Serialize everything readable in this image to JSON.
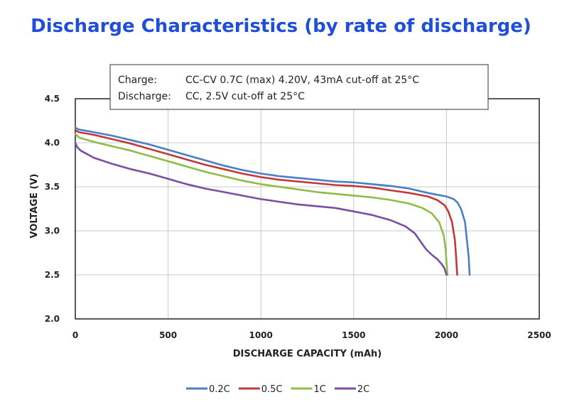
{
  "title": "Discharge Characteristics (by rate of discharge)",
  "chart_data": {
    "type": "line",
    "title": "Discharge Characteristics (by rate of discharge)",
    "xlabel": "DISCHARGE CAPACITY (mAh)",
    "ylabel": "VOLTAGE (V)",
    "xlim": [
      0,
      2500
    ],
    "ylim": [
      2.0,
      4.5
    ],
    "xticks": [
      0,
      500,
      1000,
      1500,
      2000,
      2500
    ],
    "xtick_labels": [
      "0",
      "500",
      "1000",
      "1500",
      "2000",
      "2500"
    ],
    "yticks": [
      2.0,
      2.5,
      3.0,
      3.5,
      4.0,
      4.5
    ],
    "ytick_labels": [
      "2.0",
      "2.5",
      "3.0",
      "3.5",
      "4.0",
      "4.5"
    ],
    "grid": true,
    "legend_position": "bottom-center",
    "annotation": {
      "line1_label": "Charge:",
      "line1_text": "CC-CV 0.7C (max) 4.20V, 43mA cut-off at 25°C",
      "line2_label": "Discharge:",
      "line2_text": "CC, 2.5V cut-off at 25°C"
    },
    "series": [
      {
        "name": "0.2C",
        "color": "#4a7fc4",
        "points": [
          [
            0,
            4.17
          ],
          [
            20,
            4.15
          ],
          [
            100,
            4.12
          ],
          [
            200,
            4.08
          ],
          [
            300,
            4.03
          ],
          [
            400,
            3.98
          ],
          [
            500,
            3.92
          ],
          [
            600,
            3.86
          ],
          [
            700,
            3.8
          ],
          [
            800,
            3.74
          ],
          [
            900,
            3.69
          ],
          [
            1000,
            3.65
          ],
          [
            1100,
            3.62
          ],
          [
            1200,
            3.6
          ],
          [
            1300,
            3.58
          ],
          [
            1400,
            3.56
          ],
          [
            1500,
            3.55
          ],
          [
            1600,
            3.53
          ],
          [
            1700,
            3.51
          ],
          [
            1800,
            3.48
          ],
          [
            1900,
            3.43
          ],
          [
            1950,
            3.41
          ],
          [
            2000,
            3.39
          ],
          [
            2040,
            3.36
          ],
          [
            2060,
            3.32
          ],
          [
            2080,
            3.24
          ],
          [
            2100,
            3.1
          ],
          [
            2110,
            2.9
          ],
          [
            2120,
            2.7
          ],
          [
            2125,
            2.5
          ]
        ]
      },
      {
        "name": "0.5C",
        "color": "#c0393b",
        "points": [
          [
            0,
            4.14
          ],
          [
            20,
            4.12
          ],
          [
            100,
            4.09
          ],
          [
            200,
            4.04
          ],
          [
            300,
            3.99
          ],
          [
            400,
            3.93
          ],
          [
            500,
            3.87
          ],
          [
            600,
            3.81
          ],
          [
            700,
            3.75
          ],
          [
            800,
            3.7
          ],
          [
            900,
            3.65
          ],
          [
            1000,
            3.61
          ],
          [
            1100,
            3.58
          ],
          [
            1200,
            3.56
          ],
          [
            1300,
            3.54
          ],
          [
            1400,
            3.52
          ],
          [
            1500,
            3.51
          ],
          [
            1600,
            3.49
          ],
          [
            1700,
            3.46
          ],
          [
            1800,
            3.43
          ],
          [
            1900,
            3.39
          ],
          [
            1950,
            3.35
          ],
          [
            1990,
            3.29
          ],
          [
            2010,
            3.22
          ],
          [
            2030,
            3.1
          ],
          [
            2045,
            2.9
          ],
          [
            2052,
            2.7
          ],
          [
            2058,
            2.5
          ]
        ]
      },
      {
        "name": "1C",
        "color": "#8fbc44",
        "points": [
          [
            0,
            4.1
          ],
          [
            20,
            4.06
          ],
          [
            100,
            4.01
          ],
          [
            200,
            3.96
          ],
          [
            300,
            3.91
          ],
          [
            400,
            3.85
          ],
          [
            500,
            3.79
          ],
          [
            600,
            3.73
          ],
          [
            700,
            3.67
          ],
          [
            800,
            3.62
          ],
          [
            900,
            3.57
          ],
          [
            1000,
            3.53
          ],
          [
            1100,
            3.5
          ],
          [
            1200,
            3.47
          ],
          [
            1300,
            3.44
          ],
          [
            1400,
            3.42
          ],
          [
            1500,
            3.4
          ],
          [
            1600,
            3.38
          ],
          [
            1700,
            3.35
          ],
          [
            1800,
            3.31
          ],
          [
            1870,
            3.26
          ],
          [
            1920,
            3.2
          ],
          [
            1960,
            3.1
          ],
          [
            1985,
            2.95
          ],
          [
            1995,
            2.8
          ],
          [
            2000,
            2.65
          ],
          [
            2005,
            2.5
          ]
        ]
      },
      {
        "name": "2C",
        "color": "#7a4ea3",
        "points": [
          [
            0,
            4.0
          ],
          [
            10,
            3.95
          ],
          [
            30,
            3.91
          ],
          [
            100,
            3.83
          ],
          [
            200,
            3.76
          ],
          [
            300,
            3.7
          ],
          [
            400,
            3.65
          ],
          [
            500,
            3.59
          ],
          [
            600,
            3.53
          ],
          [
            700,
            3.48
          ],
          [
            800,
            3.44
          ],
          [
            900,
            3.4
          ],
          [
            1000,
            3.36
          ],
          [
            1100,
            3.33
          ],
          [
            1200,
            3.3
          ],
          [
            1300,
            3.28
          ],
          [
            1400,
            3.26
          ],
          [
            1500,
            3.22
          ],
          [
            1600,
            3.18
          ],
          [
            1700,
            3.12
          ],
          [
            1780,
            3.05
          ],
          [
            1830,
            2.97
          ],
          [
            1860,
            2.88
          ],
          [
            1890,
            2.79
          ],
          [
            1920,
            2.73
          ],
          [
            1950,
            2.68
          ],
          [
            1975,
            2.62
          ],
          [
            1990,
            2.57
          ],
          [
            2000,
            2.5
          ]
        ]
      }
    ]
  }
}
